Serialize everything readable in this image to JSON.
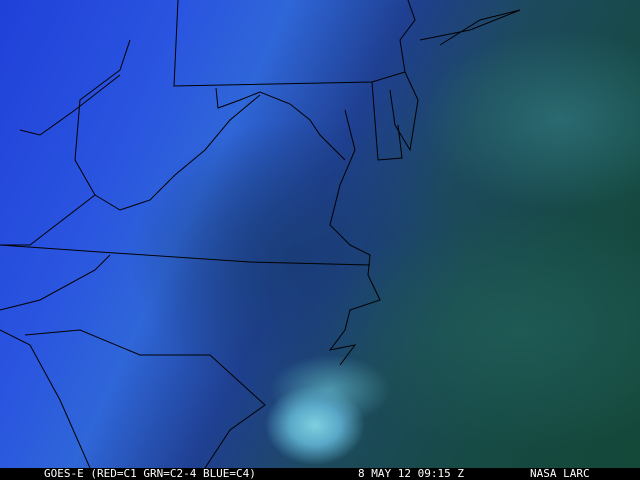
{
  "image": {
    "type": "satellite-imagery",
    "colors": {
      "land_cloud": "#2a55e0",
      "ocean": "#164a44",
      "low_cloud": "#7fd0e0"
    }
  },
  "caption": {
    "satellite": "GOES-E (RED=C1 GRN=C2-4 BLUE=C4)",
    "datetime": "8 MAY 12 09:15 Z",
    "source": "NASA LARC"
  }
}
